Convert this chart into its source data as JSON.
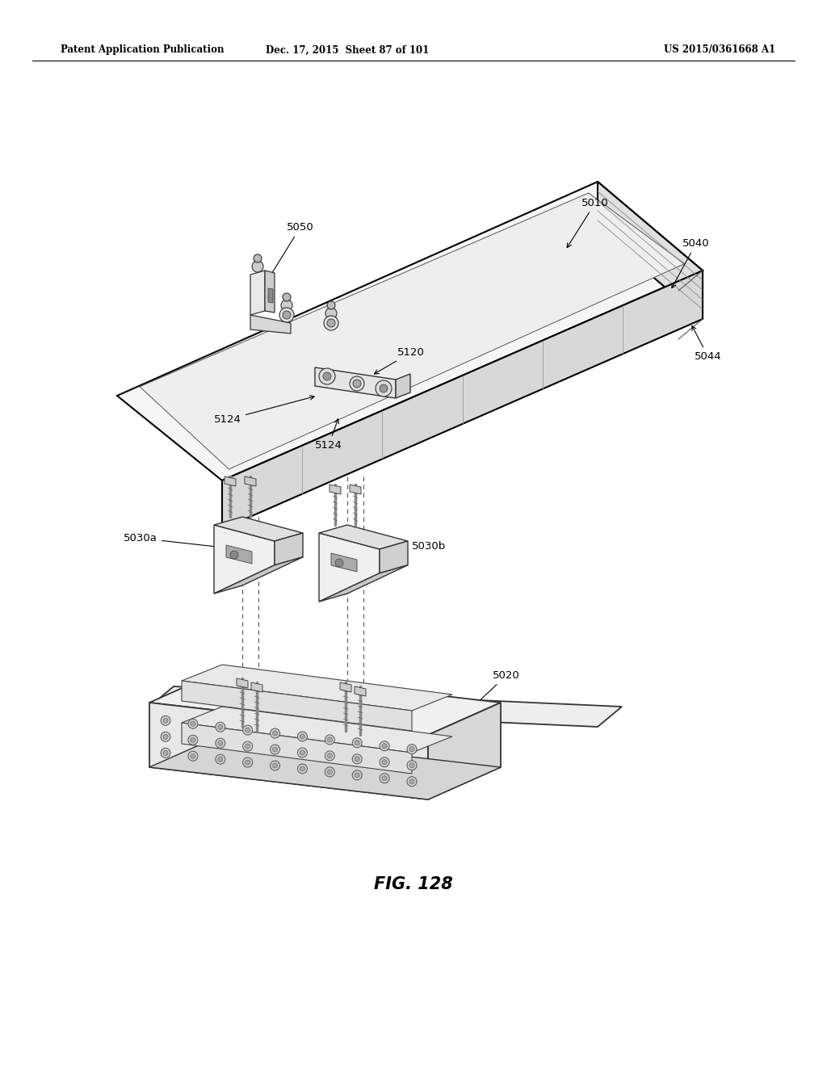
{
  "header_left": "Patent Application Publication",
  "header_mid": "Dec. 17, 2015  Sheet 87 of 101",
  "header_right": "US 2015/0361668 A1",
  "figure_label": "FIG. 128",
  "bg": "#ffffff",
  "lc": "#000000",
  "lc_gray": "#888888",
  "panel_fill": "#f8f8f8",
  "panel_side_fill": "#e8e8e8",
  "bracket_fill": "#f0f0f0",
  "bracket_dark": "#d8d8d8",
  "rail_fill": "#f0f0f0",
  "rail_dark": "#e0e0e0"
}
